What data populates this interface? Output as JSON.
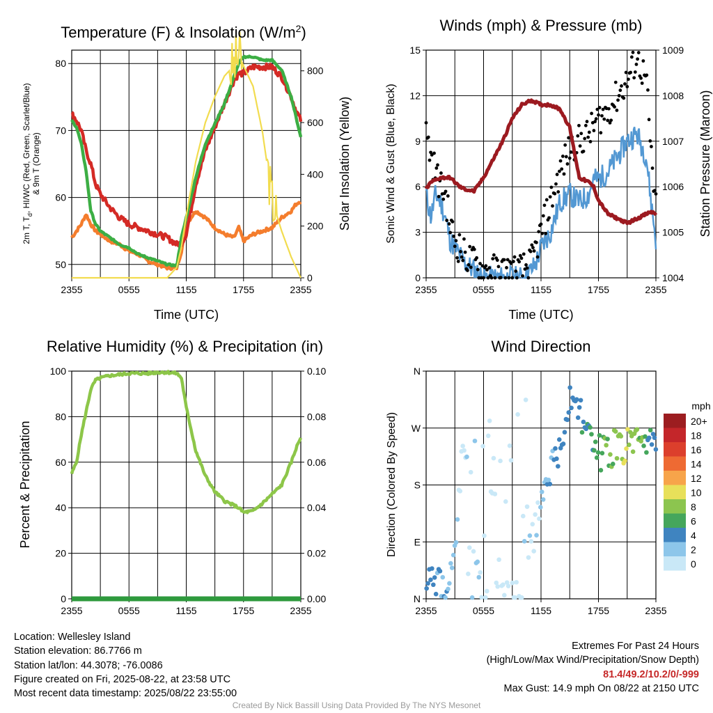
{
  "colors": {
    "temp_2m": "#d42a25",
    "dewpoint": "#3cae44",
    "temp_9m": "#f47d2d",
    "insolation": "#f2dc4f",
    "wind": "#5398d3",
    "gust": "#000000",
    "pressure": "#9c1a20",
    "rh": "#8dc649",
    "precip": "#2e9a3d"
  },
  "charts": [
    {
      "id": "temp",
      "title": "Temperature (F) & Insolation (W/m",
      "title_sup": "2",
      "title_end": ")",
      "ylabel": "2m T, T, HI/WC (Red, Green, Scarlet/Blue) & 9m T (Orange)",
      "ylabel_line1": "2m T, T",
      "ylabel_line1_sub": "d",
      "ylabel_line1_end": ", HI/WC (Red, Green, Scarlet/Blue)",
      "ylabel_line2": "& 9m T (Orange)",
      "y2label": "Solar Insolation (Yellow)",
      "xlabel": "Time (UTC)",
      "x_ticks": [
        "2355",
        "0555",
        "1155",
        "1755",
        "2355"
      ],
      "y_ticks": [
        "50",
        "60",
        "70",
        "80"
      ],
      "y2_ticks": [
        "0",
        "200",
        "400",
        "600",
        "800"
      ]
    },
    {
      "id": "wind",
      "title": "Winds (mph) & Pressure (mb)",
      "ylabel": "Sonic Wind & Gust (Blue, Black)",
      "y2label": "Station Pressure (Maroon)",
      "xlabel": "Time (UTC)",
      "x_ticks": [
        "2355",
        "0555",
        "1155",
        "1755",
        "2355"
      ],
      "y_ticks": [
        "0",
        "3",
        "6",
        "9",
        "12",
        "15"
      ],
      "y2_ticks": [
        "1004",
        "1005",
        "1006",
        "1007",
        "1008",
        "1009"
      ]
    },
    {
      "id": "rh",
      "title": "Relative Humidity (%) & Precipitation (in)",
      "ylabel": "Percent & Precipitation",
      "x_ticks": [
        "2355",
        "0555",
        "1155",
        "1755",
        "2355"
      ],
      "y_ticks": [
        "0",
        "20",
        "40",
        "60",
        "80",
        "100"
      ],
      "y2_ticks": [
        "0.00",
        "0.02",
        "0.04",
        "0.06",
        "0.08",
        "0.10"
      ]
    },
    {
      "id": "wdir",
      "title": "Wind Direction",
      "ylabel": "Direction (Colored By Speed)",
      "x_ticks": [
        "2355",
        "0555",
        "1155",
        "1755",
        "2355"
      ],
      "y_ticks": [
        "N",
        "E",
        "S",
        "W",
        "N"
      ],
      "legend_title": "mph",
      "legend_labels": [
        "20+",
        "18",
        "16",
        "14",
        "12",
        "10",
        "8",
        "6",
        "4",
        "2",
        "0"
      ],
      "legend_colors": [
        "#9c1d20",
        "#c4262a",
        "#dc3f2c",
        "#ee6a33",
        "#f7a44a",
        "#e8e05a",
        "#8cc54f",
        "#45a65c",
        "#3f84c0",
        "#8dc6ea",
        "#c9e8f7"
      ]
    }
  ],
  "chart_data": [
    {
      "type": "line",
      "title": "Temperature (F) & Insolation (W/m2)",
      "xlabel": "Time (UTC)",
      "ylabel": "2m T, Td, HI/WC (Red, Green, Scarlet/Blue) & 9m T (Orange)",
      "y2label": "Solar Insolation (Yellow)",
      "x_hours": [
        0,
        0.5,
        1,
        1.5,
        2,
        2.5,
        3,
        3.5,
        4,
        5,
        6,
        7,
        8,
        9,
        10,
        11,
        11.5,
        12,
        13,
        14,
        15,
        16,
        17,
        17.5,
        18,
        19,
        20,
        21,
        22,
        23,
        23.5,
        24
      ],
      "ylim": [
        48,
        82
      ],
      "y2lim": [
        0,
        880
      ],
      "series": [
        {
          "values": [
            71.5,
            70.5,
            68,
            64,
            58,
            56,
            55,
            54.5,
            54,
            53,
            52.5,
            51.5,
            51,
            50.5,
            50,
            49.8,
            54,
            57,
            63,
            68,
            71,
            74,
            78,
            80,
            81,
            81,
            80.5,
            80.5,
            79,
            75,
            72,
            69
          ]
        },
        {
          "values": [
            54,
            55,
            56,
            57.5,
            56,
            55,
            54.5,
            54,
            53.5,
            53,
            52,
            51.5,
            50.5,
            50,
            49.5,
            49.5,
            52,
            56,
            58,
            57,
            55.5,
            54.5,
            54,
            55.5,
            53.5,
            54.5,
            55,
            55.5,
            57,
            58,
            59,
            59.5
          ]
        },
        {
          "values": [
            72.5,
            71.5,
            70,
            67,
            65,
            62,
            60.5,
            59.5,
            58.5,
            57,
            56,
            55.5,
            55,
            54.5,
            54,
            53,
            53.2,
            54.5,
            62,
            67,
            70.5,
            74,
            77.5,
            78.5,
            78.5,
            79.5,
            79.5,
            79.5,
            78,
            75,
            73,
            71.5
          ]
        },
        {
          "values": [
            0,
            0,
            0,
            0,
            0,
            0,
            0,
            0,
            0,
            0,
            0,
            0,
            0,
            0,
            0,
            40,
            120,
            240,
            450,
            600,
            700,
            780,
            820,
            860,
            820,
            740,
            560,
            300,
            180,
            80,
            40,
            0
          ]
        }
      ]
    },
    {
      "type": "line",
      "title": "Winds (mph) & Pressure (mb)",
      "xlabel": "Time (UTC)",
      "ylabel": "Sonic Wind & Gust (Blue, Black)",
      "y2label": "Station Pressure (Maroon)",
      "x_hours": [
        0,
        0.5,
        1,
        1.5,
        2,
        2.5,
        3,
        3.5,
        4,
        5,
        6,
        7,
        8,
        9,
        10,
        11,
        11.5,
        12,
        13,
        14,
        15,
        16,
        17,
        17.5,
        18,
        19,
        20,
        21,
        22,
        23,
        23.5,
        24
      ],
      "ylim": [
        0,
        15
      ],
      "y2lim": [
        1004,
        1009
      ],
      "series": [
        {
          "values": [
            5.5,
            4,
            5.5,
            5,
            4,
            2.5,
            2,
            1.5,
            1,
            0.5,
            0,
            0,
            0,
            0,
            0,
            0.5,
            1,
            2,
            3,
            5,
            5.5,
            5,
            5.5,
            6.5,
            6.5,
            7,
            8,
            9,
            9.5,
            8,
            5,
            2.5
          ]
        },
        {
          "values": [
            9.5,
            8,
            7,
            6,
            5.5,
            3.5,
            2.5,
            2,
            1.5,
            1,
            0.5,
            0.5,
            0.5,
            0.5,
            0.5,
            1,
            2,
            3,
            5,
            7,
            8.5,
            9,
            9.5,
            10,
            10.5,
            11,
            12,
            13,
            14.5,
            13,
            8,
            4.5
          ]
        },
        {
          "values": [
            1005.95,
            1006.1,
            1006.15,
            1006.2,
            1006.2,
            1006.2,
            1006.1,
            1006.0,
            1005.95,
            1005.9,
            1006.2,
            1006.6,
            1007.0,
            1007.5,
            1007.8,
            1007.9,
            1007.85,
            1007.8,
            1007.8,
            1007.7,
            1007.3,
            1006.2,
            1006.1,
            1006.0,
            1005.7,
            1005.4,
            1005.3,
            1005.2,
            1005.3,
            1005.4,
            1005.45,
            1005.4
          ]
        }
      ]
    },
    {
      "type": "line",
      "title": "Relative Humidity (%) & Precipitation (in)",
      "ylabel": "Percent & Precipitation",
      "x_hours": [
        0,
        0.5,
        1,
        1.5,
        2,
        2.5,
        3,
        3.5,
        4,
        5,
        6,
        7,
        8,
        9,
        10,
        11,
        11.5,
        12,
        13,
        14,
        15,
        16,
        17,
        17.5,
        18,
        19,
        20,
        21,
        22,
        23,
        23.5,
        24
      ],
      "ylim": [
        0,
        100
      ],
      "y2lim": [
        0,
        0.1
      ],
      "series": [
        {
          "values": [
            55,
            60,
            72,
            82,
            92,
            96,
            97,
            97.5,
            98,
            98.5,
            99,
            99,
            99,
            99.5,
            99.5,
            99,
            97,
            84,
            65,
            54,
            47,
            43,
            41,
            40,
            38,
            38.5,
            42,
            46,
            50,
            60,
            66,
            71
          ]
        },
        {
          "values": [
            0,
            0,
            0,
            0,
            0,
            0,
            0,
            0,
            0,
            0,
            0,
            0,
            0,
            0,
            0,
            0,
            0,
            0,
            0,
            0,
            0,
            0,
            0,
            0,
            0,
            0,
            0,
            0,
            0,
            0,
            0,
            0
          ]
        }
      ]
    },
    {
      "type": "scatter",
      "title": "Wind Direction",
      "ylabel": "Direction (Colored By Speed)",
      "x_hours": [
        0,
        0.5,
        1,
        1.5,
        2,
        2.5,
        3,
        3.5,
        4,
        5,
        6,
        7,
        8,
        9,
        10,
        11,
        11.5,
        12,
        13,
        14,
        15,
        16,
        17,
        17.5,
        18,
        19,
        20,
        21,
        22,
        23,
        23.5,
        24
      ],
      "y_directions": [
        "N",
        "E",
        "S",
        "W",
        "N"
      ],
      "ylim_degrees": [
        0,
        360
      ],
      "series": [
        {
          "degrees": [
            45,
            30,
            20,
            15,
            25,
            30,
            60,
            180,
            260,
            70,
            0,
            0,
            0,
            0,
            0,
            90,
            110,
            150,
            200,
            230,
            320,
            300,
            250,
            240,
            230,
            235,
            240,
            245,
            240,
            235,
            240,
            245
          ],
          "speeds_mph": [
            4,
            4,
            4,
            3,
            3,
            2,
            2,
            1,
            1,
            1,
            0,
            0,
            0,
            0,
            0,
            1,
            1,
            2,
            3,
            4,
            4,
            4,
            5,
            6,
            6,
            7,
            8,
            9,
            8,
            6,
            5,
            4
          ]
        }
      ],
      "legend_title": "mph",
      "legend_labels": [
        "20+",
        "18",
        "16",
        "14",
        "12",
        "10",
        "8",
        "6",
        "4",
        "2",
        "0"
      ]
    }
  ],
  "info": {
    "location": "Location: Wellesley Island",
    "elevation": "Station elevation: 86.7766 m",
    "latlon": "Station lat/lon: 44.3078; -76.0086",
    "created": "Figure created on Fri, 2025-08-22, at 23:58 UTC",
    "recent": "Most recent data timestamp: 2025/08/22 23:55:00",
    "extremes_title": "Extremes For Past 24 Hours",
    "extremes_sub": "(High/Low/Max Wind/Precipitation/Snow Depth)",
    "extremes_values": "81.4/49.2/10.2/0/-999",
    "max_gust": "Max Gust: 14.9 mph On 08/22 at 2150 UTC",
    "credit": "Created By Nick Bassill Using Data Provided By The NYS Mesonet"
  }
}
